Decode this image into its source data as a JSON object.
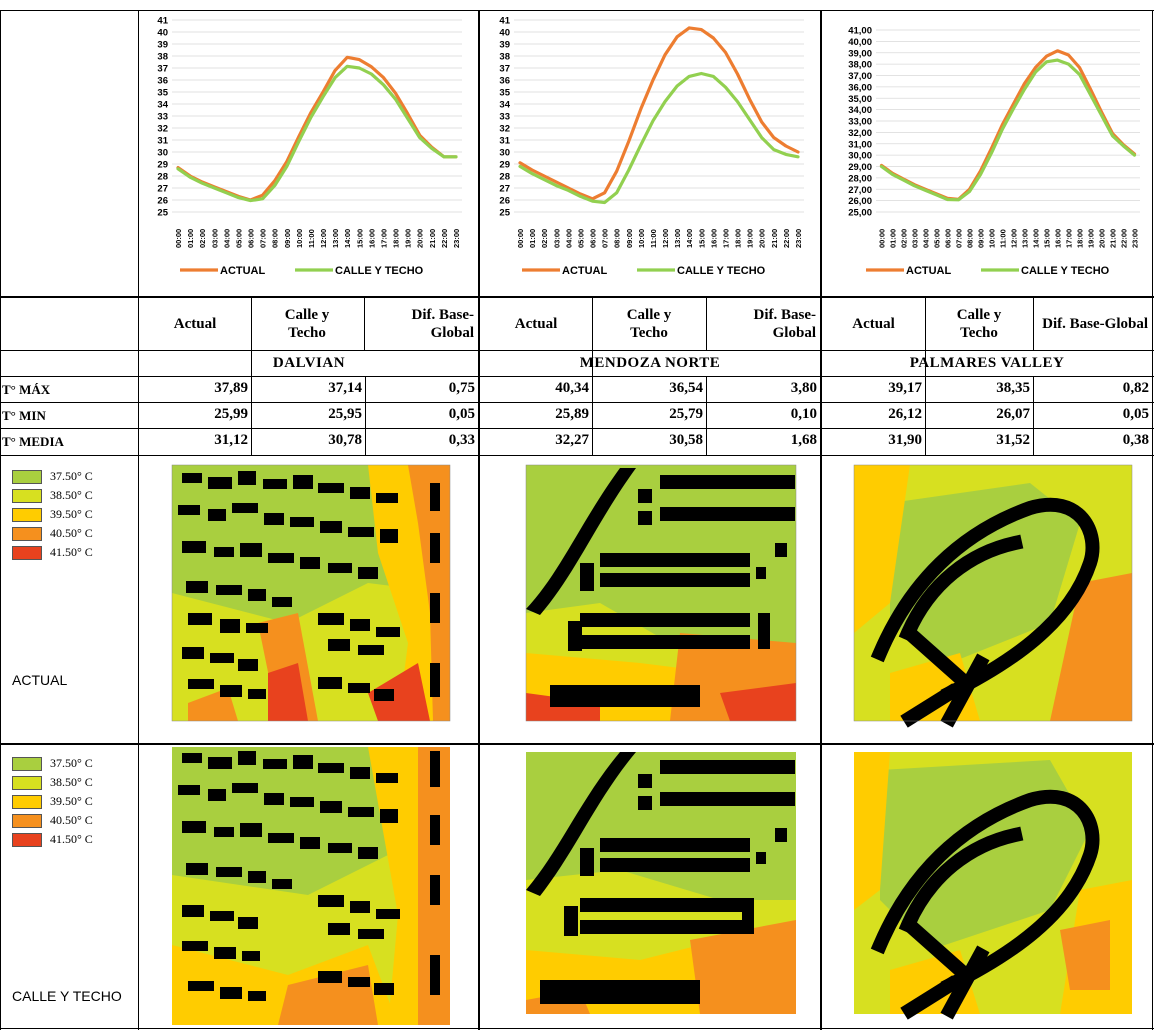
{
  "chart_data": [
    {
      "type": "line",
      "x": [
        "00:00",
        "01:00",
        "02:00",
        "03:00",
        "04:00",
        "05:00",
        "06:00",
        "07:00",
        "08:00",
        "09:00",
        "10:00",
        "11:00",
        "12:00",
        "13:00",
        "14:00",
        "15:00",
        "16:00",
        "17:00",
        "18:00",
        "19:00",
        "20:00",
        "21:00",
        "22:00",
        "23:00"
      ],
      "series": [
        {
          "name": "ACTUAL",
          "color": "#ed7d31",
          "values": [
            28.7,
            28.0,
            27.5,
            27.1,
            26.7,
            26.3,
            26.0,
            26.4,
            27.6,
            29.2,
            31.3,
            33.3,
            35.0,
            36.8,
            37.89,
            37.7,
            37.1,
            36.2,
            34.9,
            33.2,
            31.4,
            30.4,
            29.6,
            29.6
          ]
        },
        {
          "name": "CALLE Y TECHO",
          "color": "#92d050",
          "values": [
            28.6,
            27.9,
            27.4,
            27.0,
            26.6,
            26.2,
            25.95,
            26.1,
            27.2,
            28.8,
            30.9,
            32.9,
            34.6,
            36.2,
            37.14,
            37.0,
            36.5,
            35.6,
            34.4,
            32.8,
            31.2,
            30.3,
            29.6,
            29.6
          ]
        }
      ],
      "ylim": [
        25,
        41
      ],
      "yticks": [
        "25",
        "26",
        "27",
        "28",
        "29",
        "30",
        "31",
        "32",
        "33",
        "34",
        "35",
        "36",
        "37",
        "38",
        "39",
        "40",
        "41"
      ],
      "legend": "bottom"
    },
    {
      "type": "line",
      "x": [
        "00:00",
        "01:00",
        "02:00",
        "03:00",
        "04:00",
        "05:00",
        "06:00",
        "07:00",
        "08:00",
        "09:00",
        "10:00",
        "11:00",
        "12:00",
        "13:00",
        "14:00",
        "15:00",
        "16:00",
        "17:00",
        "18:00",
        "19:00",
        "20:00",
        "21:00",
        "22:00",
        "23:00"
      ],
      "series": [
        {
          "name": "ACTUAL",
          "color": "#ed7d31",
          "values": [
            29.1,
            28.5,
            28.0,
            27.5,
            27.0,
            26.5,
            26.1,
            26.6,
            28.4,
            30.9,
            33.6,
            36.0,
            38.1,
            39.6,
            40.34,
            40.2,
            39.5,
            38.3,
            36.5,
            34.4,
            32.5,
            31.2,
            30.5,
            30.0
          ]
        },
        {
          "name": "CALLE Y TECHO",
          "color": "#92d050",
          "values": [
            28.8,
            28.2,
            27.7,
            27.2,
            26.8,
            26.3,
            25.9,
            25.79,
            26.6,
            28.5,
            30.6,
            32.6,
            34.2,
            35.5,
            36.3,
            36.54,
            36.3,
            35.4,
            34.2,
            32.7,
            31.2,
            30.2,
            29.8,
            29.6
          ]
        }
      ],
      "ylim": [
        25,
        41
      ],
      "yticks": [
        "25",
        "26",
        "27",
        "28",
        "29",
        "30",
        "31",
        "32",
        "33",
        "34",
        "35",
        "36",
        "37",
        "38",
        "39",
        "40",
        "41"
      ],
      "legend": "bottom"
    },
    {
      "type": "line",
      "x": [
        "00:00",
        "01:00",
        "02:00",
        "03:00",
        "04:00",
        "05:00",
        "06:00",
        "07:00",
        "08:00",
        "09:00",
        "10:00",
        "11:00",
        "12:00",
        "13:00",
        "14:00",
        "15:00",
        "16:00",
        "17:00",
        "18:00",
        "19:00",
        "20:00",
        "21:00",
        "22:00",
        "23:00"
      ],
      "series": [
        {
          "name": "ACTUAL",
          "color": "#ed7d31",
          "values": [
            29.1,
            28.4,
            27.9,
            27.4,
            27.0,
            26.6,
            26.2,
            26.12,
            27.0,
            28.6,
            30.6,
            32.7,
            34.5,
            36.3,
            37.7,
            38.7,
            39.17,
            38.8,
            37.7,
            35.8,
            33.8,
            31.9,
            30.9,
            30.1
          ]
        },
        {
          "name": "CALLE Y TECHO",
          "color": "#92d050",
          "values": [
            29.0,
            28.3,
            27.8,
            27.3,
            26.9,
            26.5,
            26.1,
            26.07,
            26.8,
            28.3,
            30.2,
            32.3,
            34.1,
            35.8,
            37.3,
            38.2,
            38.35,
            38.0,
            37.1,
            35.3,
            33.5,
            31.7,
            30.8,
            30.0
          ]
        }
      ],
      "ylim": [
        25,
        41
      ],
      "yticks": [
        "25,00",
        "26,00",
        "27,00",
        "28,00",
        "29,00",
        "30,00",
        "31,00",
        "32,00",
        "33,00",
        "34,00",
        "35,00",
        "36,00",
        "37,00",
        "38,00",
        "39,00",
        "40,00",
        "41,00"
      ],
      "legend": "bottom"
    }
  ],
  "table": {
    "headers": [
      {
        "actual": "Actual",
        "calle": "Calle y Techo",
        "dif": "Dif. Base-Global"
      },
      {
        "actual": "Actual",
        "calle": "Calle y Techo",
        "dif": "Dif. Base-Global"
      },
      {
        "actual": "Actual",
        "calle": "Calle y Techo",
        "dif": "Dif. Base-Global"
      }
    ],
    "sites": [
      "DALVIAN",
      "MENDOZA NORTE",
      "PALMARES VALLEY"
    ],
    "rows": [
      {
        "label": "T° MÁX",
        "values": [
          "37,89",
          "37,14",
          "0,75",
          "40,34",
          "36,54",
          "3,80",
          "39,17",
          "38,35",
          "0,82"
        ]
      },
      {
        "label": "T° MIN",
        "values": [
          "25,99",
          "25,95",
          "0,05",
          "25,89",
          "25,79",
          "0,10",
          "26,12",
          "26,07",
          "0,05"
        ]
      },
      {
        "label": "T° MEDIA",
        "values": [
          "31,12",
          "30,78",
          "0,33",
          "32,27",
          "30,58",
          "1,68",
          "31,90",
          "31,52",
          "0,38"
        ]
      }
    ]
  },
  "map_legend": [
    {
      "label": "37.50° C",
      "color": "#a9cf3f"
    },
    {
      "label": "38.50° C",
      "color": "#d7e020"
    },
    {
      "label": "39.50° C",
      "color": "#ffcc00"
    },
    {
      "label": "40.50° C",
      "color": "#f5901e"
    },
    {
      "label": "41.50° C",
      "color": "#e8421e"
    }
  ],
  "scenarios": [
    "ACTUAL",
    "CALLE Y TECHO"
  ]
}
